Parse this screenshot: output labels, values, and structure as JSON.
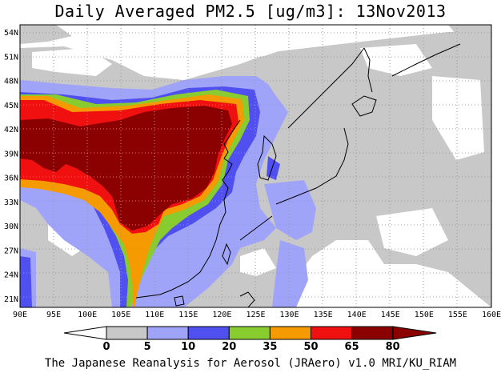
{
  "title": "Daily Averaged PM2.5 [ug/m3]: 13Nov2013",
  "footer": "The Japanese Reanalysis for Aerosol (JRAero) v1.0 MRI/KU_RIAM",
  "map": {
    "lon_range": [
      90,
      160
    ],
    "lat_range": [
      20,
      55
    ],
    "lon_ticks": [
      "90E",
      "95E",
      "100E",
      "105E",
      "110E",
      "115E",
      "120E",
      "125E",
      "130E",
      "135E",
      "140E",
      "145E",
      "150E",
      "155E",
      "160E"
    ],
    "lat_ticks": [
      "54N",
      "51N",
      "48N",
      "45N",
      "42N",
      "39N",
      "36N",
      "33N",
      "30N",
      "27N",
      "24N",
      "21N"
    ],
    "grid": true
  },
  "colorbar": {
    "levels": [
      "0",
      "5",
      "10",
      "20",
      "35",
      "50",
      "65",
      "80"
    ],
    "colors": [
      "#ffffff",
      "#c8c8c8",
      "#a0a4f8",
      "#5050f0",
      "#88cc30",
      "#f59a00",
      "#f01010",
      "#8b0000"
    ]
  }
}
